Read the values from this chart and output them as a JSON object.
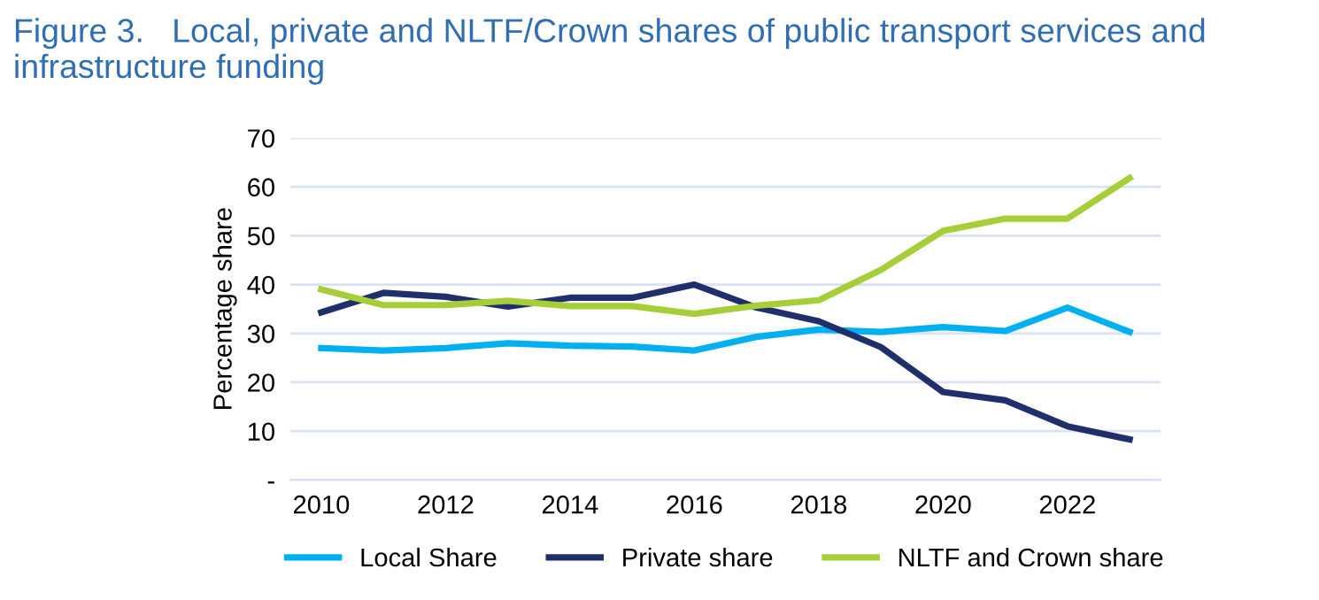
{
  "chart_data": {
    "type": "line",
    "title": "Figure 3.   Local, private and NLTF/Crown shares of public transport services and infrastructure funding",
    "ylabel": "Percentage share",
    "x": [
      2010,
      2011,
      2012,
      2013,
      2014,
      2015,
      2016,
      2017,
      2018,
      2019,
      2020,
      2021,
      2022,
      2023
    ],
    "xlim": [
      2009.5,
      2023.5
    ],
    "xticks": [
      2010,
      2012,
      2014,
      2016,
      2018,
      2020,
      2022
    ],
    "ylim": [
      0,
      70
    ],
    "yticks": [
      {
        "value": 0,
        "label": "-"
      },
      10,
      20,
      30,
      40,
      50,
      60,
      70
    ],
    "grid": "y",
    "legend": "bottom",
    "marker": "none",
    "line_style": "solid",
    "series": [
      {
        "name": "Local Share",
        "color": "#00b0f0",
        "values": [
          27,
          26.5,
          27,
          28,
          27.5,
          27.3,
          26.5,
          29.3,
          30.8,
          30.3,
          31.3,
          30.5,
          35.3,
          30.3
        ]
      },
      {
        "name": "Private share",
        "color": "#1f2f6b",
        "values": [
          34.3,
          38.3,
          37.5,
          35.5,
          37.3,
          37.3,
          40,
          35.3,
          32.5,
          27.2,
          18,
          16.3,
          11,
          8.3
        ]
      },
      {
        "name": "NLTF and Crown share",
        "color": "#a6ce39",
        "values": [
          39,
          35.8,
          35.8,
          36.7,
          35.6,
          35.6,
          34,
          35.7,
          36.8,
          43,
          51,
          53.5,
          53.5,
          61.8
        ]
      }
    ]
  }
}
